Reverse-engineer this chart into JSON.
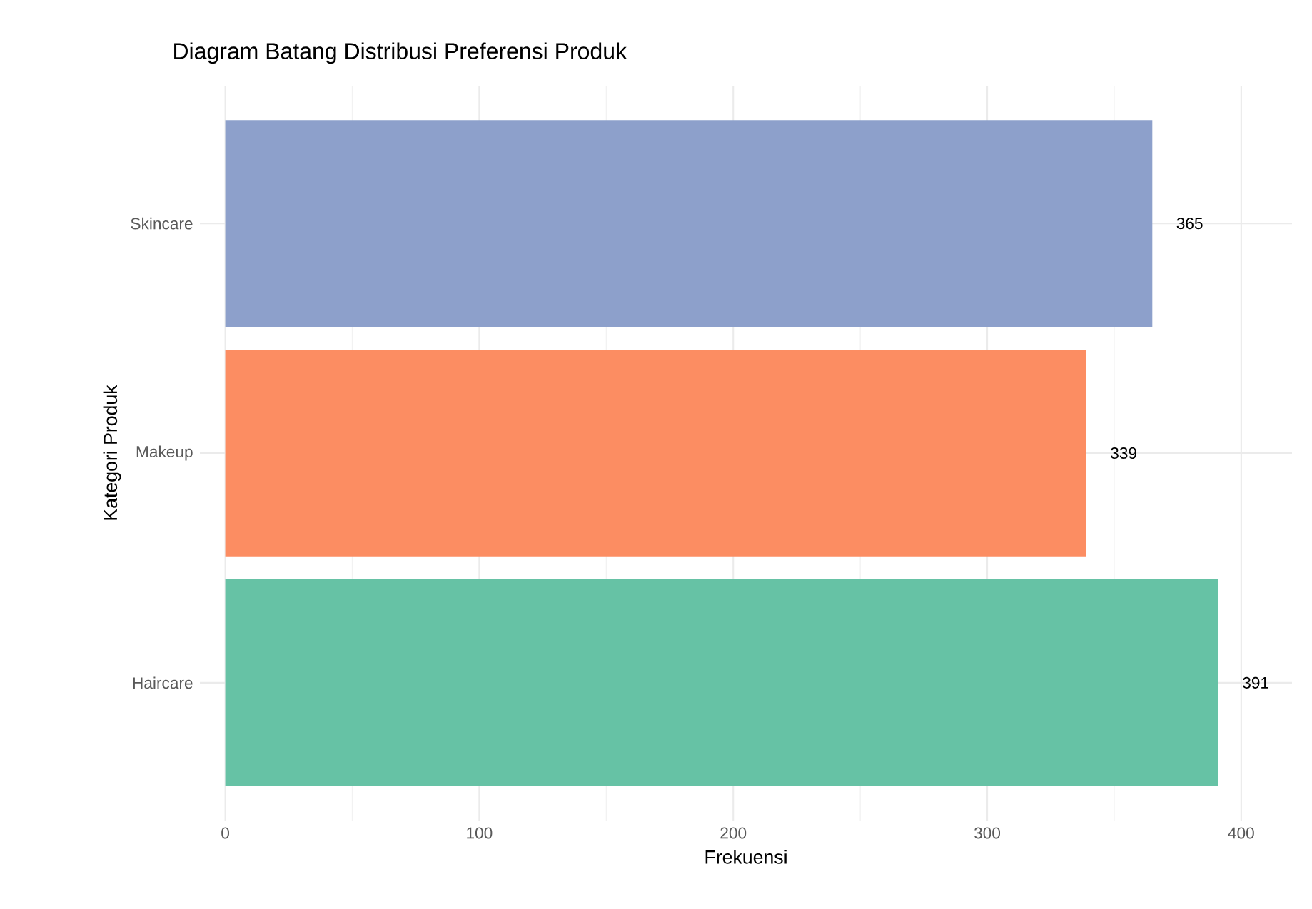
{
  "chart_data": {
    "type": "bar",
    "orientation": "horizontal",
    "title": "Diagram Batang Distribusi Preferensi Produk",
    "xlabel": "Frekuensi",
    "ylabel": "Kategori Produk",
    "categories": [
      "Skincare",
      "Makeup",
      "Haircare"
    ],
    "values": [
      365,
      339,
      391
    ],
    "colors": [
      "#8da0cb",
      "#fc8d62",
      "#66c2a5"
    ],
    "xlim": [
      -10,
      420
    ],
    "xticks": [
      0,
      100,
      200,
      300,
      400
    ],
    "grid": true,
    "data_labels": true
  }
}
